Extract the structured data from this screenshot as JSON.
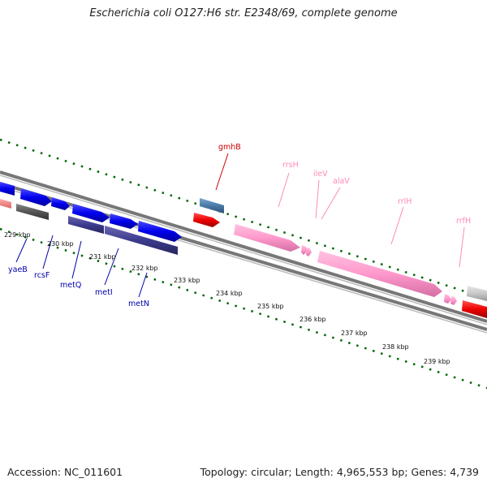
{
  "title": "Escherichia coli O127:H6 str. E2348/69, complete genome",
  "footer": {
    "accession": "Accession: NC_011601",
    "topology": "Topology: circular; Length: 4,965,553 bp; Genes: 4,739"
  },
  "ticks": [
    "229 kbp",
    "230 kbp",
    "231 kbp",
    "232 kbp",
    "233 kbp",
    "234 kbp",
    "235 kbp",
    "236 kbp",
    "237 kbp",
    "238 kbp",
    "239 kbp"
  ],
  "gene_labels": {
    "yaeB": "yaeB",
    "rcsF": "rcsF",
    "metQ": "metQ",
    "metI": "metI",
    "metN": "metN",
    "gmhB": "gmhB",
    "rrsH": "rrsH",
    "ileV": "ileV",
    "alaV": "alaV",
    "rrlH": "rrlH",
    "rrfH": "rrfH"
  },
  "colors": {
    "cds": "#0000ee",
    "cds_dark": "#3d3b8e",
    "rrna": "#ff99cc",
    "trna": "#ff99cc",
    "red_gene": "#ee0000",
    "blue_gene": "#4a7aa8",
    "label_blue": "#0000aa",
    "label_red": "#cc0000",
    "label_pink": "#ff88bb",
    "tick_green": "#006600"
  }
}
